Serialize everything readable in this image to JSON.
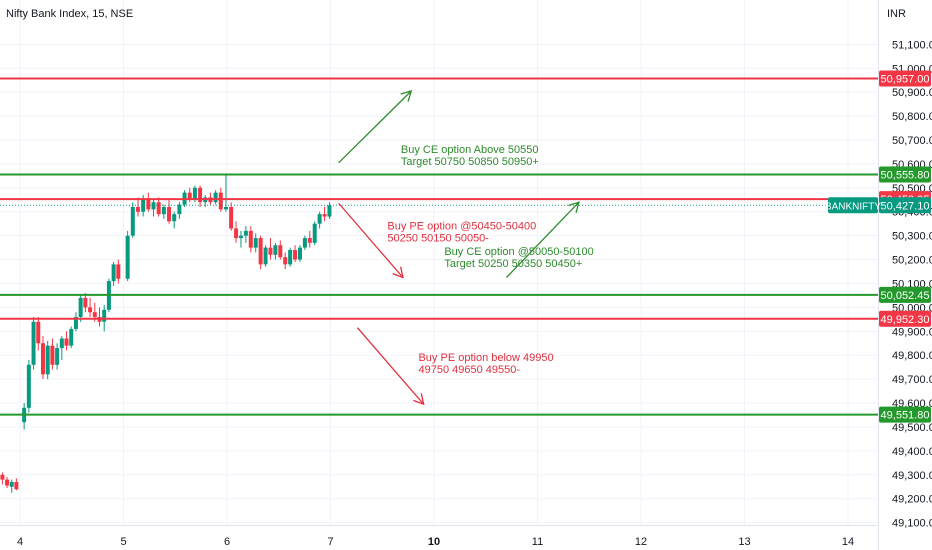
{
  "chart_data": {
    "type": "candlestick",
    "title": "Nifty Bank Index, 15, NSE",
    "currency": "INR",
    "y_range": [
      49065,
      51160
    ],
    "y_ticks": [
      49100,
      49200,
      49300,
      49400,
      49500,
      49600,
      49700,
      49800,
      49900,
      50000,
      50100,
      50200,
      50300,
      50400,
      50500,
      50600,
      50700,
      50800,
      50900,
      51000,
      51100
    ],
    "y_tick_labels": [
      "49,100.00",
      "49,200.00",
      "49,300.00",
      "49,400.00",
      "49,500.00",
      "49,600.00",
      "49,700.00",
      "49,800.00",
      "49,900.00",
      "50,000.00",
      "50,100.00",
      "50,200.00",
      "50,300.00",
      "50,400.00",
      "50,500.00",
      "50,600.00",
      "50,700.00",
      "50,800.00",
      "50,900.00",
      "51,000.00",
      "51,100.00"
    ],
    "x_ticks": [
      {
        "label": "4",
        "bold": false,
        "session": 0
      },
      {
        "label": "5",
        "bold": false,
        "session": 1
      },
      {
        "label": "6",
        "bold": false,
        "session": 2
      },
      {
        "label": "7",
        "bold": false,
        "session": 3
      },
      {
        "label": "10",
        "bold": true,
        "session": 4
      },
      {
        "label": "11",
        "bold": false,
        "session": 5
      },
      {
        "label": "12",
        "bold": false,
        "session": 6
      },
      {
        "label": "13",
        "bold": false,
        "session": 7
      },
      {
        "label": "14",
        "bold": false,
        "session": 8
      }
    ],
    "levels": [
      {
        "value": 50957.0,
        "label": "50,957.00",
        "color": "#f23645"
      },
      {
        "value": 50555.8,
        "label": "50,555.80",
        "color": "#22992a"
      },
      {
        "value": 50452.95,
        "label": "50,452.95",
        "color": "#f23645"
      },
      {
        "value": 50052.45,
        "label": "50,052.45",
        "color": "#22992a"
      },
      {
        "value": 49952.3,
        "label": "49,952.30",
        "color": "#f23645"
      },
      {
        "value": 49551.8,
        "label": "49,551.80",
        "color": "#22992a"
      }
    ],
    "last_price": {
      "value": 50427.1,
      "label": "50,427.10",
      "symbol": "BANKNIFTY",
      "color": "#089981"
    },
    "annotations": [
      {
        "lines": [
          "Buy CE option Above 50550",
          "Target 50750 50850 50950+"
        ],
        "color": "#2e8b2e",
        "session_pos": 3.68,
        "value": 50645
      },
      {
        "lines": [
          "Buy PE option @50450-50400",
          "50250 50150 50050-"
        ],
        "color": "#e0303f",
        "session_pos": 3.55,
        "value": 50325
      },
      {
        "lines": [
          "Buy CE option @50050-50100",
          "Target 50250 50350 50450+"
        ],
        "color": "#2e8b2e",
        "session_pos": 4.1,
        "value": 50220
      },
      {
        "lines": [
          "Buy PE option below 49950",
          "49750 49650 49550-"
        ],
        "color": "#e0303f",
        "session_pos": 3.85,
        "value": 49775
      }
    ],
    "arrows": [
      {
        "from": [
          3.08,
          50605
        ],
        "to": [
          3.78,
          50905
        ],
        "color": "#2e8b2e"
      },
      {
        "from": [
          3.08,
          50435
        ],
        "to": [
          3.7,
          50125
        ],
        "color": "#e0303f"
      },
      {
        "from": [
          4.7,
          50125
        ],
        "to": [
          5.4,
          50440
        ],
        "color": "#2e8b2e"
      },
      {
        "from": [
          3.26,
          49915
        ],
        "to": [
          3.9,
          49595
        ],
        "color": "#e0303f"
      }
    ],
    "candles": [
      [
        49300,
        49310,
        49260,
        49280
      ],
      [
        49280,
        49290,
        49245,
        49255
      ],
      [
        49250,
        49280,
        49225,
        49270
      ],
      [
        49270,
        49285,
        49235,
        49240
      ],
      [
        49520,
        49600,
        49490,
        49580
      ],
      [
        49580,
        49780,
        49560,
        49760
      ],
      [
        49760,
        49960,
        49740,
        49940
      ],
      [
        49940,
        49960,
        49820,
        49850
      ],
      [
        49850,
        49880,
        49700,
        49720
      ],
      [
        49720,
        49860,
        49700,
        49840
      ],
      [
        49840,
        49870,
        49740,
        49760
      ],
      [
        49760,
        49850,
        49740,
        49830
      ],
      [
        49830,
        49880,
        49780,
        49870
      ],
      [
        49870,
        49900,
        49820,
        49840
      ],
      [
        49840,
        49920,
        49830,
        49910
      ],
      [
        49910,
        49980,
        49900,
        49960
      ],
      [
        49960,
        50050,
        49940,
        50040
      ],
      [
        50040,
        50060,
        49980,
        50000
      ],
      [
        50000,
        50040,
        49960,
        49980
      ],
      [
        49980,
        50020,
        49940,
        49960
      ],
      [
        49960,
        50000,
        49920,
        49940
      ],
      [
        49940,
        50010,
        49900,
        49990
      ],
      [
        49990,
        50120,
        49980,
        50110
      ],
      [
        50110,
        50190,
        50090,
        50180
      ],
      [
        50180,
        50200,
        50100,
        50120
      ],
      [
        50120,
        50320,
        50110,
        50300
      ],
      [
        50300,
        50440,
        50290,
        50420
      ],
      [
        50420,
        50460,
        50380,
        50400
      ],
      [
        50400,
        50470,
        50380,
        50450
      ],
      [
        50450,
        50480,
        50400,
        50410
      ],
      [
        50410,
        50450,
        50380,
        50440
      ],
      [
        50440,
        50460,
        50380,
        50390
      ],
      [
        50390,
        50430,
        50370,
        50420
      ],
      [
        50420,
        50450,
        50350,
        50360
      ],
      [
        50360,
        50400,
        50330,
        50390
      ],
      [
        50390,
        50440,
        50370,
        50430
      ],
      [
        50430,
        50490,
        50420,
        50480
      ],
      [
        50480,
        50500,
        50440,
        50450
      ],
      [
        50450,
        50510,
        50440,
        50500
      ],
      [
        50500,
        50510,
        50420,
        50440
      ],
      [
        50440,
        50470,
        50420,
        50460
      ],
      [
        50460,
        50480,
        50430,
        50440
      ],
      [
        50440,
        50490,
        50430,
        50480
      ],
      [
        50480,
        50500,
        50400,
        50410
      ],
      [
        50410,
        50560,
        50400,
        50420
      ],
      [
        50420,
        50440,
        50320,
        50330
      ],
      [
        50330,
        50360,
        50270,
        50290
      ],
      [
        50290,
        50320,
        50250,
        50300
      ],
      [
        50300,
        50340,
        50270,
        50320
      ],
      [
        50320,
        50340,
        50230,
        50250
      ],
      [
        50250,
        50310,
        50230,
        50290
      ],
      [
        50290,
        50300,
        50160,
        50180
      ],
      [
        50180,
        50260,
        50170,
        50250
      ],
      [
        50250,
        50290,
        50200,
        50220
      ],
      [
        50220,
        50270,
        50200,
        50260
      ],
      [
        50260,
        50280,
        50200,
        50210
      ],
      [
        50210,
        50230,
        50160,
        50180
      ],
      [
        50180,
        50250,
        50170,
        50240
      ],
      [
        50240,
        50260,
        50190,
        50200
      ],
      [
        50200,
        50260,
        50190,
        50250
      ],
      [
        50250,
        50300,
        50240,
        50290
      ],
      [
        50290,
        50320,
        50250,
        50270
      ],
      [
        50270,
        50360,
        50260,
        50350
      ],
      [
        50350,
        50400,
        50330,
        50390
      ],
      [
        50390,
        50420,
        50360,
        50380
      ],
      [
        50380,
        50440,
        50370,
        50427
      ]
    ],
    "candle_sessions": [
      {
        "session_offset": -0.17,
        "start": 0,
        "count": 4,
        "spacing": 0.045
      },
      {
        "session_offset": 0.0,
        "start": 4,
        "count": 21,
        "spacing": 0.0455
      },
      {
        "session_offset": 1.0,
        "start": 25,
        "count": 20,
        "spacing": 0.05
      },
      {
        "session_offset": 2.0,
        "start": 45,
        "count": 21,
        "spacing": 0.0475
      }
    ],
    "colors": {
      "up": "#089981",
      "down": "#f23645",
      "grid": "#f0f3fa",
      "text": "#131722",
      "axis_text": "#131722"
    }
  }
}
